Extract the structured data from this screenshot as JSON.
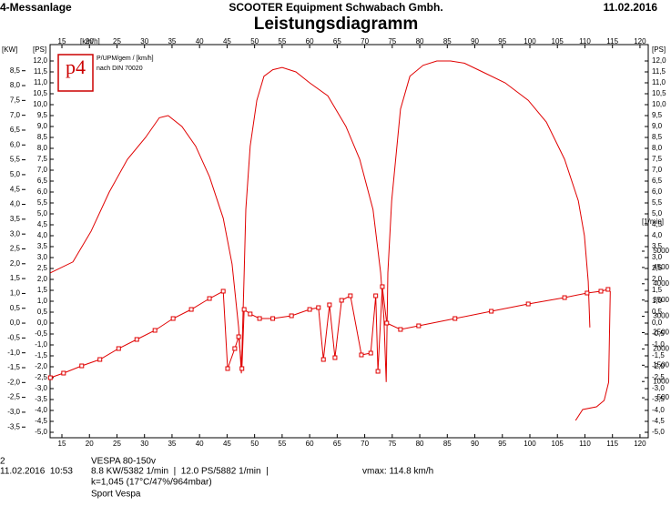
{
  "header": {
    "left": "4-Messanlage",
    "center": "SCOOTER Equipment Schwabach Gmbh.",
    "date": "11.02.2016"
  },
  "chart_data": {
    "type": "line",
    "title": "Leistungsdiagramm",
    "logo": "p4",
    "legend_text": [
      "P/UPM/gem / [km/h]",
      "nach DIN 70020"
    ],
    "x_label": "[km/h]",
    "y_label": "[PS]",
    "kw_label": "[KW]",
    "y2_label": "[1/min]",
    "xlim": [
      12.85,
      121.5
    ],
    "xticks": [
      15,
      20,
      25,
      30,
      35,
      40,
      45,
      50,
      55,
      60,
      65,
      70,
      75,
      80,
      85,
      90,
      95,
      100,
      105,
      110,
      115,
      120
    ],
    "ylim": [
      -5.25,
      12.75
    ],
    "yticks": [
      {
        "value": -5,
        "label": "-5,0"
      },
      {
        "value": -4.5,
        "label": "-4,5"
      },
      {
        "value": -4,
        "label": "-4,0"
      },
      {
        "value": -3.5,
        "label": "-3,5"
      },
      {
        "value": -3,
        "label": "-3,0"
      },
      {
        "value": -2.5,
        "label": "-2,5"
      },
      {
        "value": -2,
        "label": "-2,0"
      },
      {
        "value": -1.5,
        "label": "-1,5"
      },
      {
        "value": -1,
        "label": "-1,0"
      },
      {
        "value": -0.5,
        "label": "-0,5"
      },
      {
        "value": 0,
        "label": "0,0"
      },
      {
        "value": 0.5,
        "label": "0,5"
      },
      {
        "value": 1,
        "label": "1,0"
      },
      {
        "value": 1.5,
        "label": "1,5"
      },
      {
        "value": 2,
        "label": "2,0"
      },
      {
        "value": 2.5,
        "label": "2,5"
      },
      {
        "value": 3,
        "label": "3,0"
      },
      {
        "value": 3.5,
        "label": "3,5"
      },
      {
        "value": 4,
        "label": "4,0"
      },
      {
        "value": 4.5,
        "label": "4,5"
      },
      {
        "value": 5,
        "label": "5,0"
      },
      {
        "value": 5.5,
        "label": "5,5"
      },
      {
        "value": 6,
        "label": "6,0"
      },
      {
        "value": 6.5,
        "label": "6,5"
      },
      {
        "value": 7,
        "label": "7,0"
      },
      {
        "value": 7.5,
        "label": "7,5"
      },
      {
        "value": 8,
        "label": "8,0"
      },
      {
        "value": 8.5,
        "label": "8,5"
      },
      {
        "value": 9,
        "label": "9,0"
      },
      {
        "value": 9.5,
        "label": "9,5"
      },
      {
        "value": 10,
        "label": "10,0"
      },
      {
        "value": 10.5,
        "label": "10,5"
      },
      {
        "value": 11,
        "label": "11,0"
      },
      {
        "value": 11.5,
        "label": "11,5"
      },
      {
        "value": 12,
        "label": "12,0"
      }
    ],
    "kw_lim": [
      -3.86,
      9.38
    ],
    "kw_ticks": [
      {
        "value": -3.5,
        "label": "-3,5"
      },
      {
        "value": -3,
        "label": "-3,0"
      },
      {
        "value": -2.5,
        "label": "-2,5"
      },
      {
        "value": -2,
        "label": "-2,0"
      },
      {
        "value": -1.5,
        "label": "-1,5"
      },
      {
        "value": -1,
        "label": "-1,0"
      },
      {
        "value": -0.5,
        "label": "-0,5"
      },
      {
        "value": 0,
        "label": "0,0"
      },
      {
        "value": 0.5,
        "label": "0,5"
      },
      {
        "value": 1,
        "label": "1,0"
      },
      {
        "value": 1.5,
        "label": "1,5"
      },
      {
        "value": 2,
        "label": "2,0"
      },
      {
        "value": 2.5,
        "label": "2,5"
      },
      {
        "value": 3,
        "label": "3,0"
      },
      {
        "value": 3.5,
        "label": "3,5"
      },
      {
        "value": 4,
        "label": "4,0"
      },
      {
        "value": 4.5,
        "label": "4,5"
      },
      {
        "value": 5,
        "label": "5,0"
      },
      {
        "value": 5.5,
        "label": "5,5"
      },
      {
        "value": 6,
        "label": "6,0"
      },
      {
        "value": 6.5,
        "label": "6,5"
      },
      {
        "value": 7,
        "label": "7,0"
      },
      {
        "value": 7.5,
        "label": "7,5"
      },
      {
        "value": 8,
        "label": "8,0"
      },
      {
        "value": 8.5,
        "label": "8,5"
      }
    ],
    "y2lim": [
      -726,
      11340
    ],
    "y2ticks": [
      500,
      1000,
      1500,
      2000,
      2500,
      3000,
      3500,
      4000,
      4500,
      5000
    ],
    "series": [
      {
        "color": "#e00000",
        "markers": false,
        "x": [
          12.9,
          17.0,
          20.3,
          23.6,
          26.9,
          30.2,
          32.7,
          34.3,
          36.8,
          39.3,
          41.8,
          44.3,
          45.9,
          47.1,
          47.6,
          48.1,
          48.4,
          49.2,
          50.4,
          51.7,
          53.3,
          55.0,
          57.5,
          60.0,
          63.3,
          66.6,
          69.1,
          71.5,
          72.9,
          73.5,
          73.9,
          74.2,
          74.9,
          76.5,
          78.2,
          80.6,
          83.1,
          85.6,
          88.1,
          91.4,
          95.5,
          99.7,
          103.0,
          106.3,
          108.8,
          109.9,
          110.6,
          110.9
        ],
        "values": [
          2.3,
          2.8,
          4.2,
          6.0,
          7.5,
          8.5,
          9.4,
          9.5,
          9.0,
          8.1,
          6.7,
          4.8,
          2.7,
          -0.2,
          -2.3,
          2.3,
          5.2,
          8.1,
          10.2,
          11.3,
          11.6,
          11.7,
          11.5,
          11.0,
          10.4,
          9.0,
          7.5,
          5.2,
          2.3,
          0.2,
          -2.7,
          2.3,
          5.6,
          9.8,
          11.3,
          11.8,
          12.0,
          12.0,
          11.9,
          11.5,
          11.0,
          10.2,
          9.2,
          7.5,
          5.6,
          4.0,
          1.9,
          -0.2
        ]
      },
      {
        "color": "#e00000",
        "markers": true,
        "axis": "y2",
        "x": [
          12.9,
          15.3,
          18.6,
          21.9,
          25.3,
          28.6,
          31.9,
          35.2,
          38.5,
          41.8,
          44.3,
          45.1,
          46.4,
          47.1,
          47.7,
          48.1,
          49.2,
          50.9,
          53.3,
          56.7,
          60.0,
          61.6,
          62.5,
          63.6,
          64.6,
          65.8,
          67.4,
          69.4,
          71.1,
          72.0,
          72.4,
          73.2,
          74.0,
          76.5,
          79.8,
          86.4,
          93.0,
          99.7,
          106.3,
          110.4,
          112.9,
          114.2
        ],
        "values": [
          1117,
          1257,
          1480,
          1676,
          2011,
          2291,
          2570,
          2933,
          3212,
          3547,
          3771,
          1397,
          2011,
          2374,
          1397,
          3212,
          3073,
          2933,
          2933,
          3017,
          3212,
          3268,
          1676,
          3352,
          1732,
          3492,
          3631,
          1816,
          1872,
          3631,
          1313,
          3911,
          2793,
          2598,
          2709,
          2933,
          3156,
          3380,
          3575,
          3715,
          3771,
          3827
        ]
      },
      {
        "color": "#e00000",
        "markers": false,
        "axis": "y2",
        "x": [
          108.3,
          109.6,
          112.1,
          113.5,
          114.3,
          114.6
        ],
        "values": [
          -196,
          140,
          223,
          419,
          978,
          3771
        ]
      }
    ]
  },
  "footer": {
    "run": "2",
    "vehicle": "VESPA 80-150v",
    "datetime": "11.02.2016  10:53",
    "result": "8.8 KW/5382 1/min  |  12.0 PS/5882 1/min  |",
    "vmax": "vmax: 114.8 km/h",
    "conditions": "k=1,045 (17°C/47%/964mbar)",
    "note": "Sport Vespa"
  }
}
